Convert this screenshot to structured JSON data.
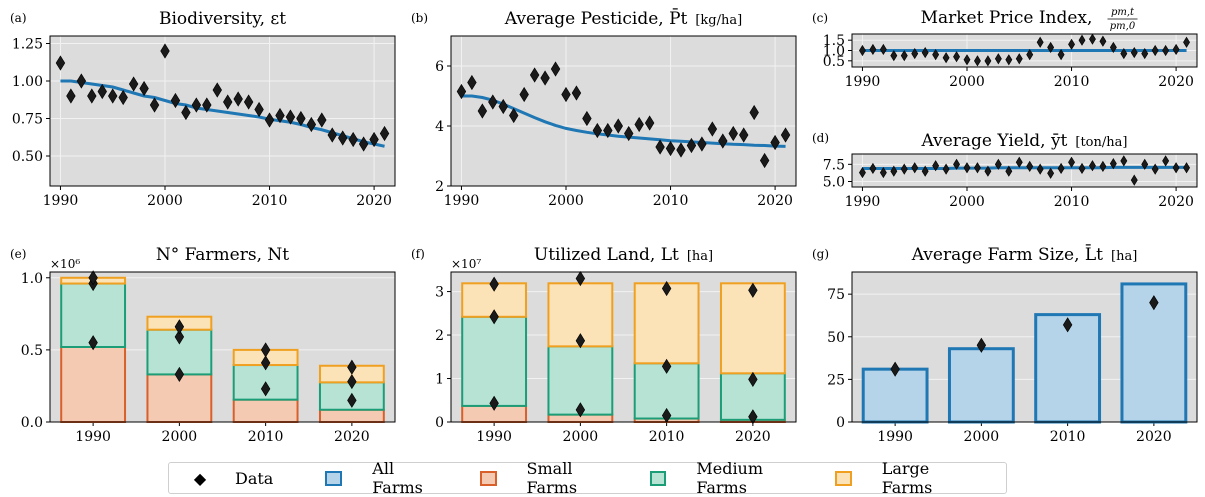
{
  "colors": {
    "panel_bg": "#dcdcdc",
    "grid": "#f2f2f2",
    "fit_line": "#1f77b4",
    "all_farms_fill": "#b5d4e9",
    "all_farms_edge": "#1f77b4",
    "small_fill": "#f4cbb2",
    "small_edge": "#d95f2b",
    "medium_fill": "#b7e3d4",
    "medium_edge": "#1b9e77",
    "large_fill": "#fbe3b7",
    "large_edge": "#f0a020",
    "data_marker": "#1a1a1a"
  },
  "chart_data": [
    {
      "id": "a",
      "panel_label": "(a)",
      "title": "Biodiversity, εt",
      "type": "scatter",
      "xlim": [
        1989,
        2022
      ],
      "ylim": [
        0.3,
        1.3
      ],
      "xticks": [
        1990,
        2000,
        2010,
        2020
      ],
      "yticks": [
        0.5,
        0.75,
        1.0,
        1.25
      ],
      "ytick_labels": [
        "0.50",
        "0.75",
        "1.00",
        "1.25"
      ],
      "grid": true,
      "x": [
        1990,
        1991,
        1992,
        1993,
        1994,
        1995,
        1996,
        1997,
        1998,
        1999,
        2000,
        2001,
        2002,
        2003,
        2004,
        2005,
        2006,
        2007,
        2008,
        2009,
        2010,
        2011,
        2012,
        2013,
        2014,
        2015,
        2016,
        2017,
        2018,
        2019,
        2020,
        2021
      ],
      "data": [
        1.12,
        0.9,
        1.0,
        0.9,
        0.93,
        0.9,
        0.89,
        0.98,
        0.95,
        0.84,
        1.2,
        0.87,
        0.79,
        0.84,
        0.84,
        0.94,
        0.86,
        0.88,
        0.86,
        0.81,
        0.74,
        0.77,
        0.76,
        0.75,
        0.71,
        0.74,
        0.64,
        0.62,
        0.61,
        0.58,
        0.61,
        0.65
      ],
      "fit": [
        1.0,
        1.0,
        0.99,
        0.98,
        0.97,
        0.96,
        0.94,
        0.92,
        0.9,
        0.89,
        0.87,
        0.85,
        0.84,
        0.82,
        0.81,
        0.8,
        0.79,
        0.78,
        0.77,
        0.76,
        0.745,
        0.735,
        0.725,
        0.71,
        0.69,
        0.675,
        0.655,
        0.635,
        0.615,
        0.595,
        0.58,
        0.565
      ]
    },
    {
      "id": "b",
      "panel_label": "(b)",
      "title": "Average Pesticide, P̄t",
      "unit": "[kg/ha]",
      "type": "scatter",
      "xlim": [
        1989,
        2022
      ],
      "ylim": [
        2,
        7
      ],
      "xticks": [
        1990,
        2000,
        2010,
        2020
      ],
      "yticks": [
        2,
        4,
        6
      ],
      "ytick_labels": [
        "2",
        "4",
        "6"
      ],
      "grid": true,
      "x": [
        1990,
        1991,
        1992,
        1993,
        1994,
        1995,
        1996,
        1997,
        1998,
        1999,
        2000,
        2001,
        2002,
        2003,
        2004,
        2005,
        2006,
        2007,
        2008,
        2009,
        2010,
        2011,
        2012,
        2013,
        2014,
        2015,
        2016,
        2017,
        2018,
        2019,
        2020,
        2021
      ],
      "data": [
        5.15,
        5.45,
        4.5,
        4.8,
        4.65,
        4.35,
        5.05,
        5.7,
        5.6,
        5.9,
        5.05,
        5.1,
        4.25,
        3.85,
        3.85,
        4.0,
        3.75,
        4.05,
        4.1,
        3.3,
        3.25,
        3.2,
        3.35,
        3.4,
        3.9,
        3.5,
        3.75,
        3.7,
        4.45,
        2.85,
        3.45,
        3.7
      ],
      "fit": [
        5.0,
        5.0,
        4.95,
        4.86,
        4.73,
        4.58,
        4.43,
        4.28,
        4.14,
        4.02,
        3.92,
        3.85,
        3.79,
        3.74,
        3.7,
        3.66,
        3.63,
        3.6,
        3.57,
        3.54,
        3.51,
        3.49,
        3.47,
        3.45,
        3.43,
        3.41,
        3.39,
        3.38,
        3.36,
        3.35,
        3.33,
        3.32
      ]
    },
    {
      "id": "c",
      "panel_label": "(c)",
      "title": "Market Price Index,",
      "type": "scatter",
      "frac_num": "pm,t",
      "frac_den": "pm,0",
      "xlim": [
        1989,
        2022
      ],
      "ylim": [
        0.2,
        1.8
      ],
      "xticks": [
        1990,
        2000,
        2010,
        2020
      ],
      "yticks": [
        0.5,
        1.0,
        1.5
      ],
      "ytick_labels": [
        "0.5",
        "1.0",
        "1.5"
      ],
      "grid": true,
      "x": [
        1990,
        1991,
        1992,
        1993,
        1994,
        1995,
        1996,
        1997,
        1998,
        1999,
        2000,
        2001,
        2002,
        2003,
        2004,
        2005,
        2006,
        2007,
        2008,
        2009,
        2010,
        2011,
        2012,
        2013,
        2014,
        2015,
        2016,
        2017,
        2018,
        2019,
        2020,
        2021
      ],
      "data": [
        1.0,
        1.05,
        1.05,
        0.75,
        0.75,
        0.85,
        0.9,
        0.8,
        0.65,
        0.7,
        0.55,
        0.5,
        0.5,
        0.6,
        0.55,
        0.6,
        0.8,
        1.4,
        1.15,
        0.8,
        1.3,
        1.5,
        1.55,
        1.45,
        1.15,
        0.85,
        0.9,
        0.85,
        1.0,
        1.0,
        1.05,
        1.4
      ],
      "fit": [
        1.0,
        1.0,
        1.0,
        1.0,
        1.0,
        1.0,
        1.0,
        1.0,
        1.0,
        1.0,
        1.0,
        1.0,
        1.0,
        1.0,
        1.0,
        1.0,
        1.0,
        1.0,
        1.0,
        1.0,
        1.0,
        1.0,
        1.0,
        1.0,
        1.0,
        1.0,
        1.0,
        1.0,
        1.0,
        1.0,
        1.0,
        1.0
      ]
    },
    {
      "id": "d",
      "panel_label": "(d)",
      "title": "Average Yield, ȳt",
      "unit": "[ton/ha]",
      "type": "scatter",
      "xlim": [
        1989,
        2022
      ],
      "ylim": [
        4.2,
        9.0
      ],
      "xticks": [
        1990,
        2000,
        2010,
        2020
      ],
      "yticks": [
        5.0,
        7.5
      ],
      "ytick_labels": [
        "5.0",
        "7.5"
      ],
      "grid": true,
      "x": [
        1990,
        1991,
        1992,
        1993,
        1994,
        1995,
        1996,
        1997,
        1998,
        1999,
        2000,
        2001,
        2002,
        2003,
        2004,
        2005,
        2006,
        2007,
        2008,
        2009,
        2010,
        2011,
        2012,
        2013,
        2014,
        2015,
        2016,
        2017,
        2018,
        2019,
        2020,
        2021
      ],
      "data": [
        6.3,
        6.9,
        6.3,
        6.5,
        6.8,
        7.0,
        6.5,
        7.3,
        6.8,
        7.5,
        7.0,
        7.0,
        6.5,
        7.5,
        6.5,
        7.8,
        7.2,
        6.8,
        6.2,
        6.9,
        7.8,
        6.9,
        7.3,
        7.2,
        7.6,
        8.0,
        5.2,
        7.5,
        6.8,
        8.0,
        7.0,
        7.0
      ],
      "fit": [
        6.9,
        6.9,
        6.9,
        6.9,
        6.9,
        6.9,
        6.9,
        6.9,
        6.9,
        6.95,
        6.95,
        6.95,
        6.95,
        7.0,
        7.0,
        7.0,
        7.0,
        7.0,
        7.0,
        7.0,
        7.0,
        7.0,
        7.0,
        7.0,
        7.05,
        7.05,
        7.05,
        7.05,
        7.05,
        7.05,
        7.05,
        7.05
      ]
    },
    {
      "id": "e",
      "panel_label": "(e)",
      "title": "N° Farmers, Nt",
      "type": "bar",
      "multiplier_label": "×10⁶",
      "categories": [
        "1990",
        "2000",
        "2010",
        "2020"
      ],
      "ylim": [
        0,
        1.04
      ],
      "yticks": [
        0,
        0.5,
        1.0
      ],
      "ytick_labels": [
        "0.0",
        "0.5",
        "1.0"
      ],
      "grid": true,
      "series": [
        {
          "name": "Small Farms",
          "values": [
            0.52,
            0.33,
            0.155,
            0.085
          ]
        },
        {
          "name": "Medium Farms",
          "values": [
            0.44,
            0.31,
            0.24,
            0.19
          ]
        },
        {
          "name": "Large Farms",
          "values": [
            0.04,
            0.09,
            0.105,
            0.115
          ]
        }
      ],
      "data_points": [
        [
          0.55,
          0.96,
          1.0
        ],
        [
          0.33,
          0.59,
          0.66
        ],
        [
          0.23,
          0.41,
          0.5
        ],
        [
          0.15,
          0.28,
          0.38
        ]
      ]
    },
    {
      "id": "f",
      "panel_label": "(f)",
      "title": "Utilized Land, Lt",
      "unit": "[ha]",
      "type": "bar",
      "multiplier_label": "×10⁷",
      "categories": [
        "1990",
        "2000",
        "2010",
        "2020"
      ],
      "ylim": [
        0,
        3.45
      ],
      "yticks": [
        0,
        1,
        2,
        3
      ],
      "ytick_labels": [
        "0",
        "1",
        "2",
        "3"
      ],
      "grid": true,
      "series": [
        {
          "name": "Small Farms",
          "values": [
            0.37,
            0.17,
            0.08,
            0.05
          ]
        },
        {
          "name": "Medium Farms",
          "values": [
            2.05,
            1.57,
            1.27,
            1.07
          ]
        },
        {
          "name": "Large Farms",
          "values": [
            0.77,
            1.45,
            1.84,
            2.07
          ]
        }
      ],
      "data_points": [
        [
          0.43,
          2.42,
          3.17
        ],
        [
          0.28,
          1.87,
          3.3
        ],
        [
          0.15,
          1.28,
          3.07
        ],
        [
          0.12,
          0.98,
          3.03
        ]
      ]
    },
    {
      "id": "g",
      "panel_label": "(g)",
      "title": "Average Farm Size, L̄t",
      "unit": "[ha]",
      "type": "bar",
      "categories": [
        "1990",
        "2000",
        "2010",
        "2020"
      ],
      "ylim": [
        0,
        88
      ],
      "yticks": [
        0,
        25,
        50,
        75
      ],
      "ytick_labels": [
        "0",
        "25",
        "50",
        "75"
      ],
      "grid": true,
      "series": [
        {
          "name": "All Farms",
          "values": [
            31,
            43,
            63,
            81
          ]
        }
      ],
      "data_points": [
        [
          31
        ],
        [
          45
        ],
        [
          57
        ],
        [
          70
        ]
      ]
    }
  ],
  "legend": {
    "items": [
      {
        "label": "Data",
        "kind": "marker"
      },
      {
        "label": "All Farms",
        "kind": "all"
      },
      {
        "label": "Small Farms",
        "kind": "small"
      },
      {
        "label": "Medium Farms",
        "kind": "medium"
      },
      {
        "label": "Large Farms",
        "kind": "large"
      }
    ]
  }
}
